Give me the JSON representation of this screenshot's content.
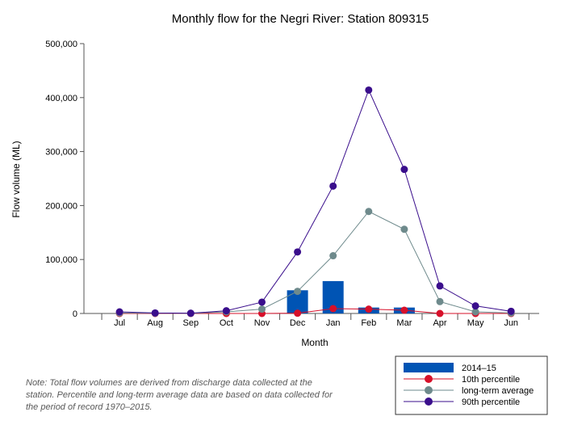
{
  "chart_data": {
    "type": "bar",
    "title": "Monthly flow for the Negri River: Station 809315",
    "xlabel": "Month",
    "ylabel": "Flow volume (ML)",
    "ylim": [
      0,
      500000
    ],
    "yticks": [
      0,
      100000,
      200000,
      300000,
      400000,
      500000
    ],
    "ytick_labels": [
      "0",
      "100,000",
      "200,000",
      "300,000",
      "400,000",
      "500,000"
    ],
    "grid": false,
    "legend_position": "bottom-right",
    "categories": [
      "Jul",
      "Aug",
      "Sep",
      "Oct",
      "Nov",
      "Dec",
      "Jan",
      "Feb",
      "Mar",
      "Apr",
      "May",
      "Jun"
    ],
    "series": [
      {
        "name": "2014–15",
        "kind": "bar",
        "color": "#0054b4",
        "values": [
          0,
          0,
          0,
          0,
          0,
          43000,
          60000,
          11000,
          11000,
          0,
          0,
          0
        ]
      },
      {
        "name": "10th percentile",
        "kind": "line",
        "color": "#d7102a",
        "values": [
          0,
          0,
          0,
          0,
          0,
          500,
          9000,
          8000,
          6000,
          0,
          0,
          0
        ]
      },
      {
        "name": "long-term average",
        "kind": "line",
        "color": "#6e8a8c",
        "values": [
          1000,
          500,
          200,
          3000,
          8000,
          41000,
          107000,
          189000,
          156000,
          22000,
          3000,
          1000
        ]
      },
      {
        "name": "90th percentile",
        "kind": "line",
        "color": "#3a0e8c",
        "values": [
          3000,
          1000,
          500,
          5000,
          21000,
          114000,
          236000,
          414000,
          267000,
          51000,
          14000,
          4000
        ]
      }
    ]
  },
  "note": "Note: Total flow volumes are derived from discharge data collected at the station. Percentile and long-term average data are based on data collected for the period of record 1970–2015."
}
